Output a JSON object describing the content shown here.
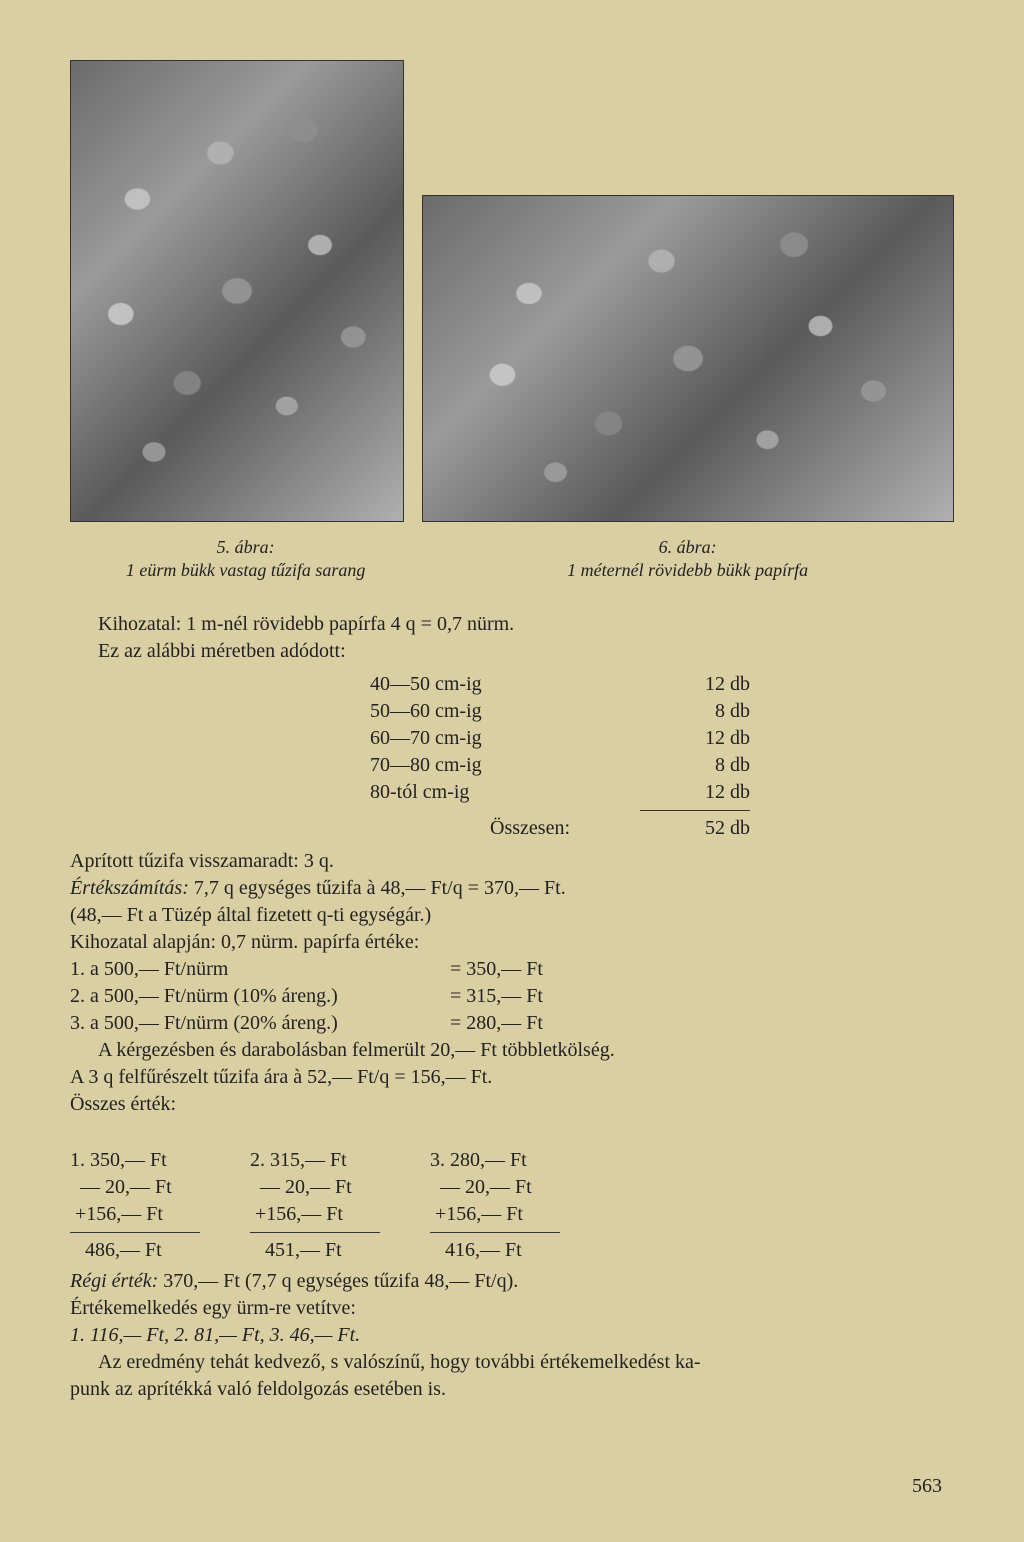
{
  "captions": {
    "fig5_num": "5. ábra:",
    "fig5_text": "1 eürm bükk vastag tűzifa sarang",
    "fig6_num": "6. ábra:",
    "fig6_text": "1 méternél rövidebb bükk papírfa"
  },
  "paragraphs": {
    "p1": "Kihozatal: 1 m-nél rövidebb papírfa 4 q = 0,7 nürm.",
    "p2": "Ez az alábbi méretben adódott:"
  },
  "size_table": {
    "rows": [
      {
        "range": "40—50 cm-ig",
        "count": "12 db"
      },
      {
        "range": "50—60 cm-ig",
        "count": "8 db"
      },
      {
        "range": "60—70 cm-ig",
        "count": "12 db"
      },
      {
        "range": "70—80 cm-ig",
        "count": "8 db"
      },
      {
        "range": "80-tól  cm-ig",
        "count": "12 db"
      }
    ],
    "total_label": "Összesen:",
    "total_value": "52 db"
  },
  "body": {
    "b1": "Aprított tűzifa visszamaradt: 3 q.",
    "b2_label": "Értékszámítás:",
    "b2_rest": " 7,7 q egységes tűzifa à 48,— Ft/q = 370,— Ft.",
    "b3": "(48,— Ft a Tüzép által fizetett q-ti egységár.)",
    "b4": "Kihozatal alapján: 0,7 nürm. papírfa értéke:",
    "calc1_lhs": "1. a 500,— Ft/nürm",
    "calc1_rhs": "= 350,— Ft",
    "calc2_lhs": "2. a 500,— Ft/nürm (10% áreng.)",
    "calc2_rhs": "= 315,— Ft",
    "calc3_lhs": "3. a 500,— Ft/nürm (20% áreng.)",
    "calc3_rhs": "= 280,— Ft",
    "b5": "A kérgezésben és darabolásban felmerült 20,— Ft többletkölség.",
    "b6": "A 3 q felfűrészelt tűzifa ára à 52,— Ft/q = 156,— Ft.",
    "b7": "Összes érték:"
  },
  "columns": {
    "c1": {
      "l1": "1. 350,— Ft",
      "l2": "  — 20,— Ft",
      "l3": " +156,— Ft",
      "l4": "   486,— Ft"
    },
    "c2": {
      "l1": "2. 315,— Ft",
      "l2": "  — 20,— Ft",
      "l3": " +156,— Ft",
      "l4": "   451,— Ft"
    },
    "c3": {
      "l1": "3. 280,— Ft",
      "l2": "  — 20,— Ft",
      "l3": " +156,— Ft",
      "l4": "   416,— Ft"
    }
  },
  "tail": {
    "t1_label": "Régi érték:",
    "t1_rest": " 370,— Ft (7,7 q egységes tűzifa 48,— Ft/q).",
    "t2": "Értékemelkedés egy ürm-re vetítve:",
    "t3": "1. 116,— Ft,   2. 81,— Ft,   3. 46,— Ft.",
    "t4": "Az eredmény tehát kedvező, s valószínű, hogy további értékemelkedést ka-\npunk az aprítékká való feldolgozás esetében is."
  },
  "page_number": "563",
  "colors": {
    "bg": "#d9cfa2",
    "text": "#222"
  }
}
